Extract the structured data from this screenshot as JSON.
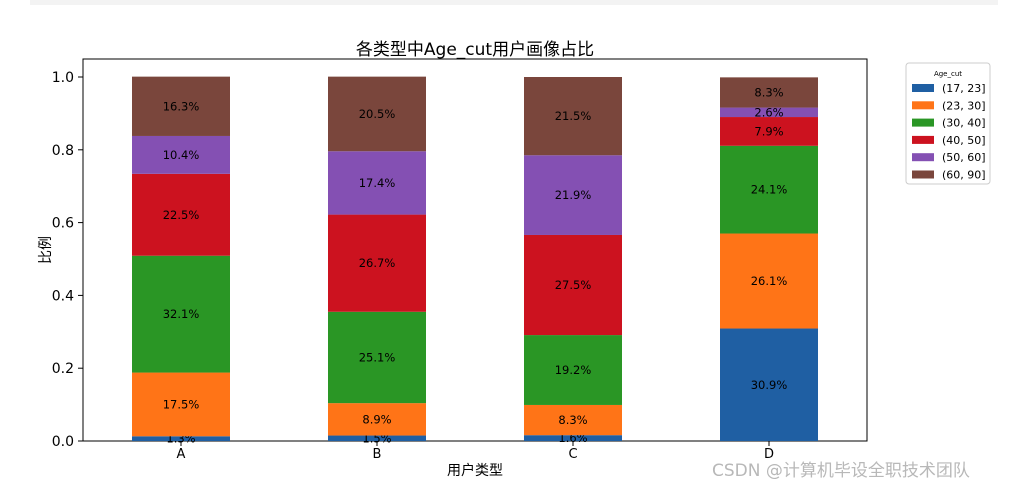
{
  "chart_data": {
    "type": "bar",
    "stacked": true,
    "title": "各类型中Age_cut用户画像占比",
    "xlabel": "用户类型",
    "ylabel": "比例",
    "categories": [
      "A",
      "B",
      "C",
      "D"
    ],
    "ylim": [
      0,
      1.05
    ],
    "yticks": [
      "0.0",
      "0.2",
      "0.4",
      "0.6",
      "0.8",
      "1.0"
    ],
    "grid": false,
    "legend": {
      "title": "Age_cut",
      "placement": "right-outside-top"
    },
    "series": [
      {
        "name": "(17, 23]",
        "color": "#1f5fa3",
        "values": [
          0.013,
          0.015,
          0.016,
          0.309
        ],
        "labels": [
          "1.3%",
          "1.5%",
          "1.6%",
          "30.9%"
        ]
      },
      {
        "name": "(23, 30]",
        "color": "#ff7417",
        "values": [
          0.175,
          0.089,
          0.083,
          0.261
        ],
        "labels": [
          "17.5%",
          "8.9%",
          "8.3%",
          "26.1%"
        ]
      },
      {
        "name": "(30, 40]",
        "color": "#2a9625",
        "values": [
          0.321,
          0.251,
          0.192,
          0.241
        ],
        "labels": [
          "32.1%",
          "25.1%",
          "19.2%",
          "24.1%"
        ]
      },
      {
        "name": "(40, 50]",
        "color": "#cc121f",
        "values": [
          0.225,
          0.267,
          0.275,
          0.079
        ],
        "labels": [
          "22.5%",
          "26.7%",
          "27.5%",
          "7.9%"
        ]
      },
      {
        "name": "(50, 60]",
        "color": "#8450b3",
        "values": [
          0.104,
          0.174,
          0.219,
          0.026
        ],
        "labels": [
          "10.4%",
          "17.4%",
          "21.9%",
          "2.6%"
        ]
      },
      {
        "name": "(60, 90]",
        "color": "#7a463c",
        "values": [
          0.163,
          0.205,
          0.215,
          0.083
        ],
        "labels": [
          "16.3%",
          "20.5%",
          "21.5%",
          "8.3%"
        ]
      }
    ]
  },
  "watermark": "CSDN @计算机毕设全职技术团队"
}
